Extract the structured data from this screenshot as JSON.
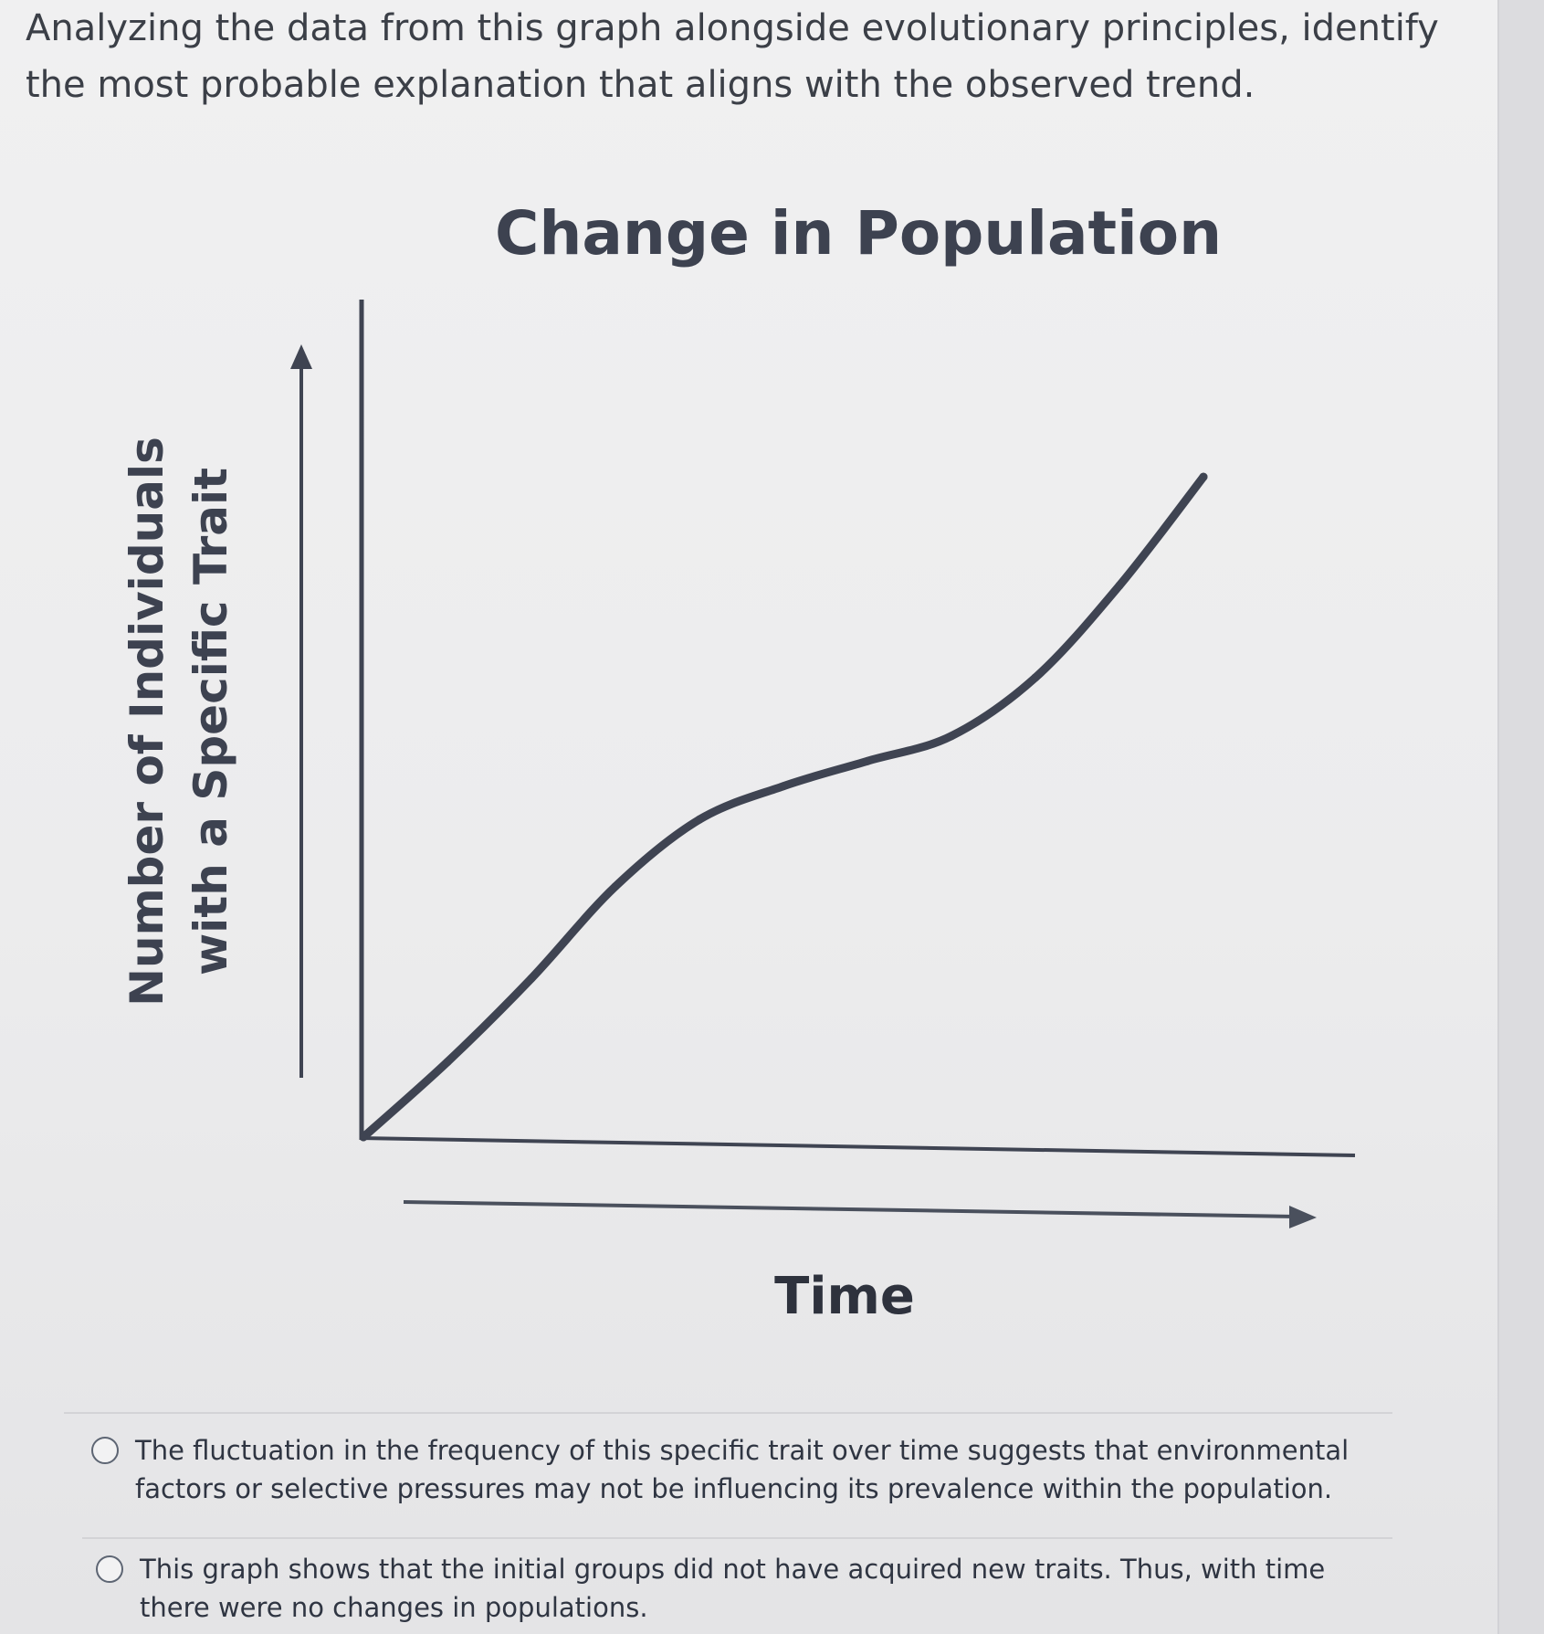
{
  "question": {
    "text": "Analyzing the data from this graph alongside evolutionary principles, identify the most probable explanation that aligns with the observed trend."
  },
  "chart_data": {
    "type": "line",
    "title": "Change in Population",
    "xlabel": "Time",
    "ylabel": [
      "Number of Individuals",
      "with a Specific Trait"
    ],
    "x": [
      0,
      1,
      2,
      3,
      4,
      5,
      6,
      7,
      8,
      9,
      10
    ],
    "series": [
      {
        "values": [
          0,
          0.9,
          1.9,
          3.0,
          3.8,
          4.2,
          4.5,
          4.8,
          5.5,
          6.6,
          7.9
        ]
      }
    ],
    "xlim": [
      0,
      11
    ],
    "ylim": [
      0,
      10
    ],
    "grid": false,
    "axis_arrows": true,
    "line_color": "#3f4452"
  },
  "options": [
    {
      "text": "The fluctuation in the frequency of this specific trait over time suggests that environmental factors or selective pressures may not be influencing its prevalence within the population."
    },
    {
      "text": "This graph shows that the initial groups did not have acquired new traits. Thus, with time there were no changes in populations."
    }
  ]
}
